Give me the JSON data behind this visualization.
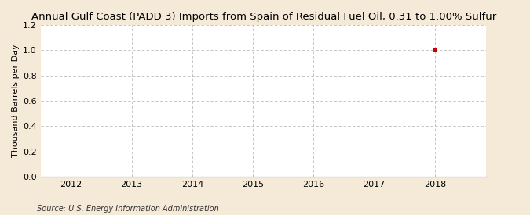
{
  "title": "Annual Gulf Coast (PADD 3) Imports from Spain of Residual Fuel Oil, 0.31 to 1.00% Sulfur",
  "ylabel": "Thousand Barrels per Day",
  "source": "Source: U.S. Energy Information Administration",
  "xlim": [
    2011.5,
    2018.85
  ],
  "ylim": [
    0.0,
    1.2
  ],
  "yticks": [
    0.0,
    0.2,
    0.4,
    0.6,
    0.8,
    1.0,
    1.2
  ],
  "xticks": [
    2012,
    2013,
    2014,
    2015,
    2016,
    2017,
    2018
  ],
  "data_x": [
    2018
  ],
  "data_y": [
    1.0
  ],
  "point_color": "#cc0000",
  "point_marker": "s",
  "point_size": 18,
  "figure_bg_color": "#f5ead8",
  "plot_bg_color": "#ffffff",
  "grid_color": "#bbbbbb",
  "title_fontsize": 9.5,
  "axis_fontsize": 8,
  "tick_fontsize": 8,
  "source_fontsize": 7
}
